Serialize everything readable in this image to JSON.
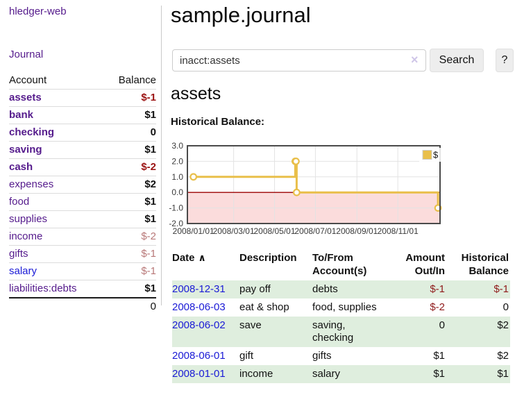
{
  "app": {
    "brand": "hledger-web"
  },
  "sidebar": {
    "journal_label": "Journal",
    "table": {
      "account_header": "Account",
      "balance_header": "Balance",
      "accounts": [
        {
          "name": "assets",
          "balance": "$-1"
        },
        {
          "name": "bank",
          "balance": "$1"
        },
        {
          "name": "checking",
          "balance": "0"
        },
        {
          "name": "saving",
          "balance": "$1"
        },
        {
          "name": "cash",
          "balance": "$-2"
        },
        {
          "name": "expenses",
          "balance": "$2"
        },
        {
          "name": "food",
          "balance": "$1"
        },
        {
          "name": "supplies",
          "balance": "$1"
        },
        {
          "name": "income",
          "balance": "$-2"
        },
        {
          "name": "gifts",
          "balance": "$-1"
        },
        {
          "name": "salary",
          "balance": "$-1"
        },
        {
          "name": "liabilities:debts",
          "balance": "$1"
        }
      ],
      "total": "0"
    }
  },
  "main": {
    "title": "sample.journal",
    "search": {
      "value": "inacct:assets",
      "clear_glyph": "×",
      "button_label": "Search",
      "help_label": "?"
    },
    "account_heading": "assets",
    "chart_label": "Historical Balance:"
  },
  "chart_data": {
    "type": "line",
    "title": "Historical Balance",
    "step": true,
    "series": [
      {
        "name": "$",
        "points": [
          [
            "2008/01/01",
            1
          ],
          [
            "2008/06/01",
            2
          ],
          [
            "2008/06/02",
            2
          ],
          [
            "2008/06/03",
            0
          ],
          [
            "2008/12/31",
            -1
          ]
        ]
      }
    ],
    "ylim": [
      -2,
      3
    ],
    "yticks": [
      [
        "3.0",
        3
      ],
      [
        "2.0",
        2
      ],
      [
        "1.0",
        1
      ],
      [
        "0.0",
        0
      ],
      [
        "-1.0",
        -1
      ],
      [
        "-2.0",
        -2
      ]
    ],
    "xticks": [
      "2008/01/01",
      "2008/03/01",
      "2008/05/01",
      "2008/07/01",
      "2008/09/01",
      "2008/11/01"
    ],
    "legend": {
      "label": "$",
      "position": "top-right"
    },
    "grid": true,
    "colors": {
      "line": "#e9bf4a",
      "marker_fill": "#ffffff",
      "negative_fill": "#fbdcdc",
      "zero_line": "#9b0000",
      "gridline": "#e3e3e3",
      "border": "#4a4a4a",
      "tick_label": "#3a3a3a"
    }
  },
  "transactions": {
    "headers": {
      "date": "Date",
      "sort_icon_glyph": "∧",
      "description": "Description",
      "accounts": "To/From Account(s)",
      "amount": "Amount Out/In",
      "balance": "Historical Balance"
    },
    "rows": [
      {
        "date": "2008-12-31",
        "description": "pay off",
        "accounts": "debts",
        "amount": "$-1",
        "balance": "$-1"
      },
      {
        "date": "2008-06-03",
        "description": "eat & shop",
        "accounts": "food, supplies",
        "amount": "$-2",
        "balance": "0"
      },
      {
        "date": "2008-06-02",
        "description": "save",
        "accounts": "saving,\nchecking",
        "amount": "0",
        "balance": "$2"
      },
      {
        "date": "2008-06-01",
        "description": "gift",
        "accounts": "gifts",
        "amount": "$1",
        "balance": "$2"
      },
      {
        "date": "2008-01-01",
        "description": "income",
        "accounts": "salary",
        "amount": "$1",
        "balance": "$1"
      }
    ]
  },
  "colors": {
    "link_purple": "#551b8c",
    "link_blue": "#1a1ad6",
    "negative_strong": "#9b1313",
    "negative_muted": "#b87878",
    "row_shade_green": "#dfeede",
    "negative_table": "#8f1a1a"
  }
}
